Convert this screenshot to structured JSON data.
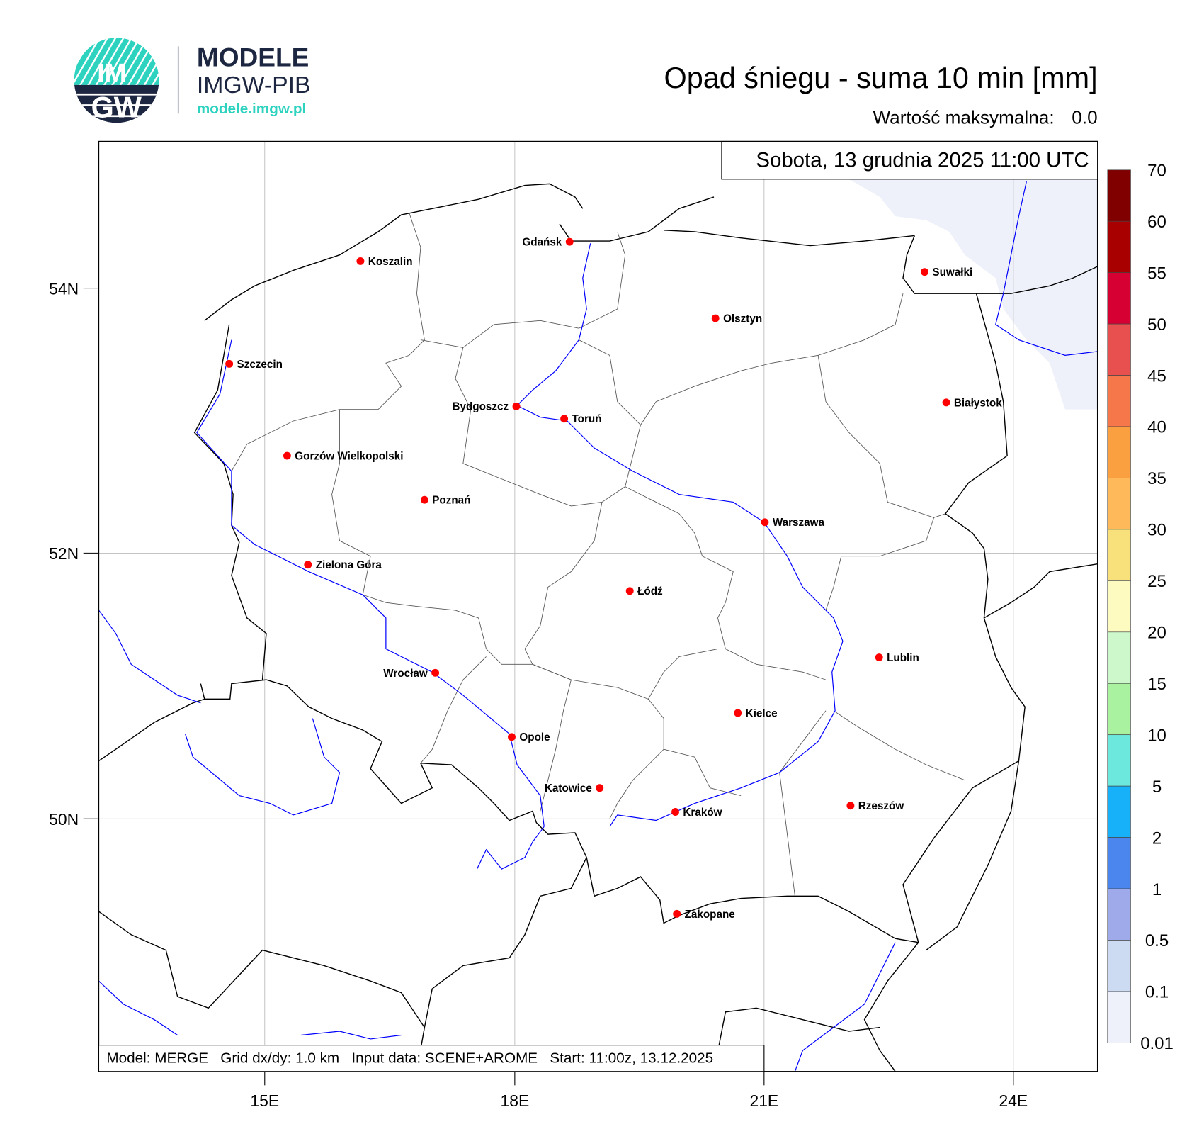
{
  "logo": {
    "emblem_top": "IM",
    "emblem_bottom": "GW",
    "title": "MODELE",
    "subtitle": "IMGW-PIB",
    "url": "modele.imgw.pl",
    "colors": {
      "teal": "#2ed3c0",
      "navy": "#1c2640"
    }
  },
  "header": {
    "title": "Opad śniegu - suma 10 min [mm]",
    "max_label": "Wartość maksymalna:",
    "max_value": "0.0"
  },
  "map": {
    "date_label": "Sobota, 13 grudnia 2025 11:00 UTC",
    "info": "Model: MERGE   Grid dx/dy: 1.0 km   Input data: SCENE+AROME   Start: 11:00z, 13.12.2025",
    "lat_ticks": [
      "54N",
      "52N",
      "50N"
    ],
    "lon_ticks": [
      "15E",
      "18E",
      "21E",
      "24E"
    ],
    "cities": [
      "Gdańsk",
      "Koszalin",
      "Suwałki",
      "Olsztyn",
      "Szczecin",
      "Białystok",
      "Bydgoszcz",
      "Toruń",
      "Gorzów Wielkopolski",
      "Poznań",
      "Warszawa",
      "Zielona Góra",
      "Łódź",
      "Lublin",
      "Wrocław",
      "Kielce",
      "Opole",
      "Katowice",
      "Rzeszów",
      "Kraków",
      "Zakopane"
    ],
    "colors": {
      "city": "#ff0000",
      "river": "#0000ff",
      "border": "#000000",
      "grid": "#bbbbbb",
      "snow_field": "#eef1f9"
    }
  },
  "colorbar": {
    "labels": [
      "70",
      "60",
      "55",
      "50",
      "45",
      "40",
      "35",
      "30",
      "25",
      "20",
      "15",
      "10",
      "5",
      "2",
      "1",
      "0.5",
      "0.1",
      "0.01"
    ],
    "colors": [
      "#800000",
      "#a80000",
      "#d60032",
      "#e85050",
      "#f5774a",
      "#fba040",
      "#fdb95a",
      "#f8e07a",
      "#fdfbc0",
      "#cdf8cc",
      "#a8f2a0",
      "#6ce9dc",
      "#16b1f8",
      "#4a86ee",
      "#9eaaea",
      "#ccdaf2",
      "#eef1f9"
    ]
  }
}
